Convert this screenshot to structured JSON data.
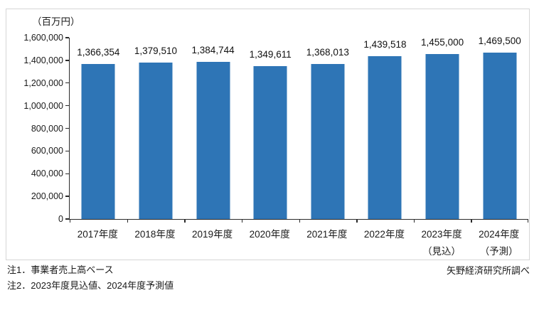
{
  "unit_label": "（百万円）",
  "notes": {
    "note1": "注1．事業者売上高ベース",
    "note2": "注2．2023年度見込値、2024年度予測値"
  },
  "source": "矢野経済研究所調べ",
  "chart_data": {
    "type": "bar",
    "title": "",
    "xlabel": "",
    "ylabel": "（百万円）",
    "categories": [
      "2017年度",
      "2018年度",
      "2019年度",
      "2020年度",
      "2021年度",
      "2022年度",
      "2023年度",
      "2024年度"
    ],
    "category_sublabels": [
      "",
      "",
      "",
      "",
      "",
      "",
      "（見込）",
      "（予測）"
    ],
    "values": [
      1366354,
      1379510,
      1384744,
      1349611,
      1368013,
      1439518,
      1455000,
      1469500
    ],
    "value_labels": [
      "1,366,354",
      "1,379,510",
      "1,384,744",
      "1,349,611",
      "1,368,013",
      "1,439,518",
      "1,455,000",
      "1,469,500"
    ],
    "ylim": [
      0,
      1600000
    ],
    "ytick_step": 200000,
    "ytick_labels": [
      "0",
      "200,000",
      "400,000",
      "600,000",
      "800,000",
      "1,000,000",
      "1,200,000",
      "1,400,000",
      "1,600,000"
    ],
    "bar_color": "#2e75b6",
    "grid": false,
    "legend": "none"
  }
}
